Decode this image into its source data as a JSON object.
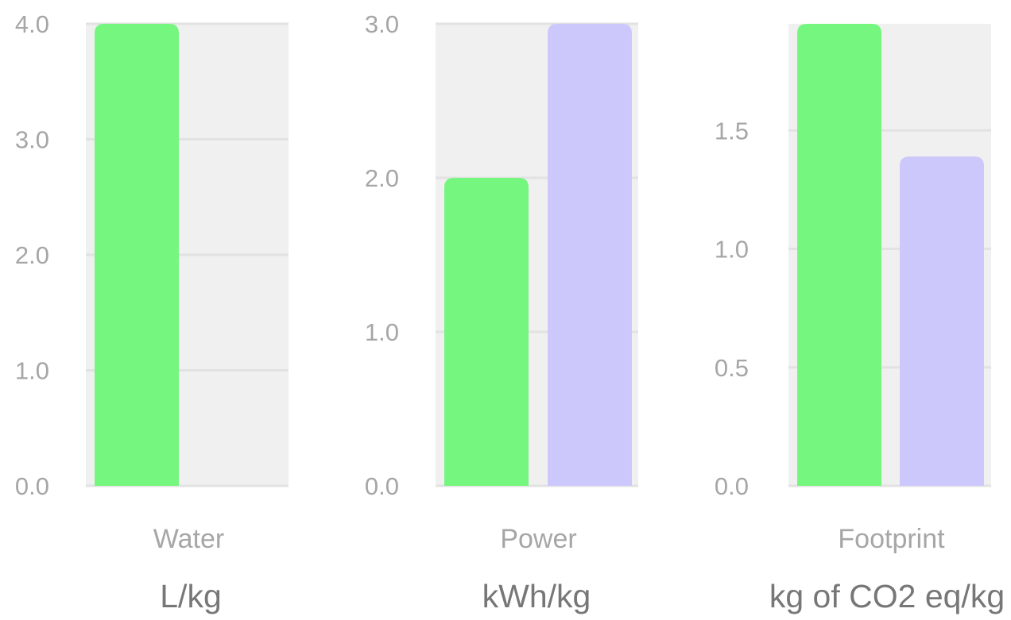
{
  "colors": {
    "plot_background": "#f0f0f0",
    "gridline": "#e2e2e2",
    "tick_text": "#a6a6a6",
    "category_text": "#a6a6a6",
    "unit_text": "#777777",
    "series_1": "#75f77f",
    "series_2": "#ccc8fb"
  },
  "chart_data": [
    {
      "type": "bar",
      "categories": [
        "Water"
      ],
      "series": [
        {
          "values": [
            4.0
          ]
        },
        {
          "values": [
            0
          ]
        }
      ],
      "xlabel": "L/kg",
      "ylabel": "",
      "ylim": [
        0,
        4.0
      ],
      "yticks": [
        "0.0",
        "1.0",
        "2.0",
        "3.0",
        "4.0"
      ],
      "ytick_values": [
        0,
        1,
        2,
        3,
        4
      ],
      "grid": true
    },
    {
      "type": "bar",
      "categories": [
        "Power"
      ],
      "series": [
        {
          "values": [
            2.0
          ]
        },
        {
          "values": [
            3.0
          ]
        }
      ],
      "xlabel": "kWh/kg",
      "ylabel": "",
      "ylim": [
        0,
        3.0
      ],
      "yticks": [
        "0.0",
        "1.0",
        "2.0",
        "3.0"
      ],
      "ytick_values": [
        0,
        1,
        2,
        3
      ],
      "grid": true
    },
    {
      "type": "bar",
      "categories": [
        "Footprint"
      ],
      "series": [
        {
          "values": [
            1.95
          ]
        },
        {
          "values": [
            1.39
          ]
        }
      ],
      "xlabel": "kg of CO2 eq/kg",
      "ylabel": "",
      "ylim": [
        0,
        1.95
      ],
      "yticks": [
        "0.0",
        "0.5",
        "1.0",
        "1.5"
      ],
      "ytick_values": [
        0,
        0.5,
        1.0,
        1.5
      ],
      "grid": true
    }
  ]
}
